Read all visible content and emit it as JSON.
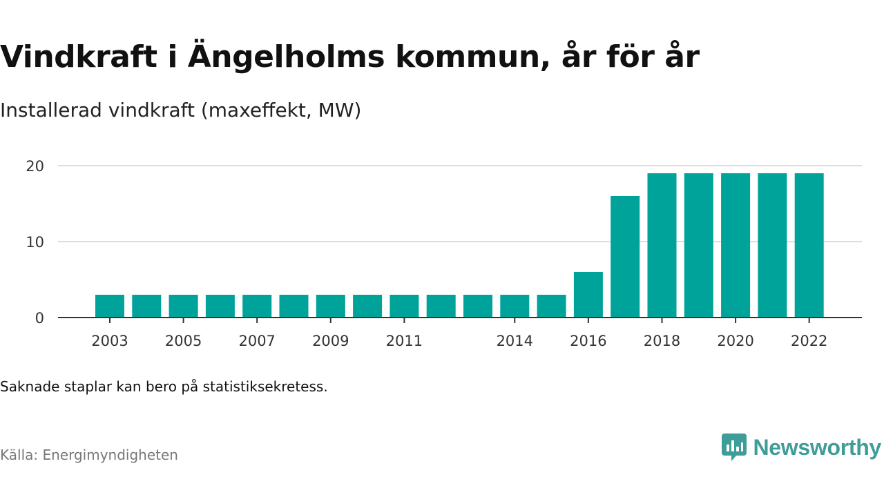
{
  "title": "Vindkraft i Ängelholms kommun, år för år",
  "subtitle": "Installerad vindkraft (maxeffekt, MW)",
  "note": "Saknade staplar kan bero på statistiksekretess.",
  "source": "Källa: Energimyndigheten",
  "brand": {
    "name": "Newsworthy",
    "icon": "newsworthy-logo-icon"
  },
  "colors": {
    "bar": "#00a39a",
    "grid": "#dddddd",
    "axis": "#333333",
    "brand": "#3e9d98"
  },
  "chart_data": {
    "type": "bar",
    "x": [
      2003,
      2004,
      2005,
      2006,
      2007,
      2008,
      2009,
      2010,
      2011,
      2012,
      2013,
      2014,
      2015,
      2016,
      2017,
      2018,
      2019,
      2020,
      2021,
      2022
    ],
    "values": [
      3,
      3,
      3,
      3,
      3,
      3,
      3,
      3,
      3,
      3,
      3,
      3,
      3,
      6,
      16,
      19,
      19,
      19,
      19,
      19
    ],
    "x_tick_labels": [
      2003,
      2005,
      2007,
      2009,
      2011,
      2014,
      2016,
      2018,
      2020,
      2022
    ],
    "y_ticks": [
      0,
      10,
      20
    ],
    "ylim": [
      0,
      20
    ],
    "grid": true,
    "legend": "none"
  }
}
